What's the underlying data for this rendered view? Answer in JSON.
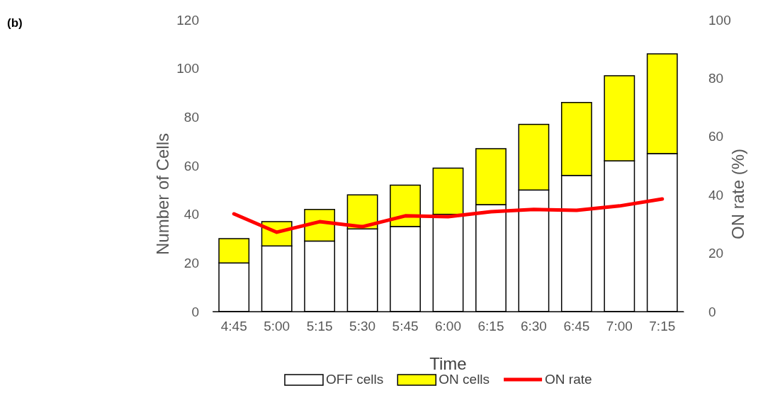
{
  "chart_data": {
    "type": "bar",
    "stacked": true,
    "xlabel": "Time",
    "ylabel": "Number of Cells",
    "y2label": "ON rate (%)",
    "annotations": [
      "(b)"
    ],
    "categories": [
      "4:45",
      "5:00",
      "5:15",
      "5:30",
      "5:45",
      "6:00",
      "6:15",
      "6:30",
      "6:45",
      "7:00",
      "7:15"
    ],
    "series": [
      {
        "name": "OFF cells",
        "color": "#ffffff",
        "values": [
          20,
          27,
          29,
          34,
          35,
          40,
          44,
          50,
          56,
          62,
          65
        ]
      },
      {
        "name": "ON cells",
        "color": "#ffff00",
        "values": [
          10,
          10,
          13,
          14,
          17,
          19,
          23,
          27,
          30,
          35,
          41
        ]
      },
      {
        "name": "ON rate",
        "type": "line",
        "axis": "y2",
        "color": "#ff0000",
        "values": [
          33.5,
          27.2,
          30.8,
          29.1,
          32.8,
          32.5,
          34.2,
          35,
          34.7,
          36.2,
          38.6
        ]
      }
    ],
    "ylim": [
      0,
      120
    ],
    "yticks": [
      0,
      20,
      40,
      60,
      80,
      100,
      120
    ],
    "y2lim": [
      0,
      100
    ],
    "y2ticks": [
      0,
      20,
      40,
      60,
      80,
      100
    ],
    "grid": false,
    "legend": "bottom",
    "marker": "none",
    "line_style": "solid"
  }
}
